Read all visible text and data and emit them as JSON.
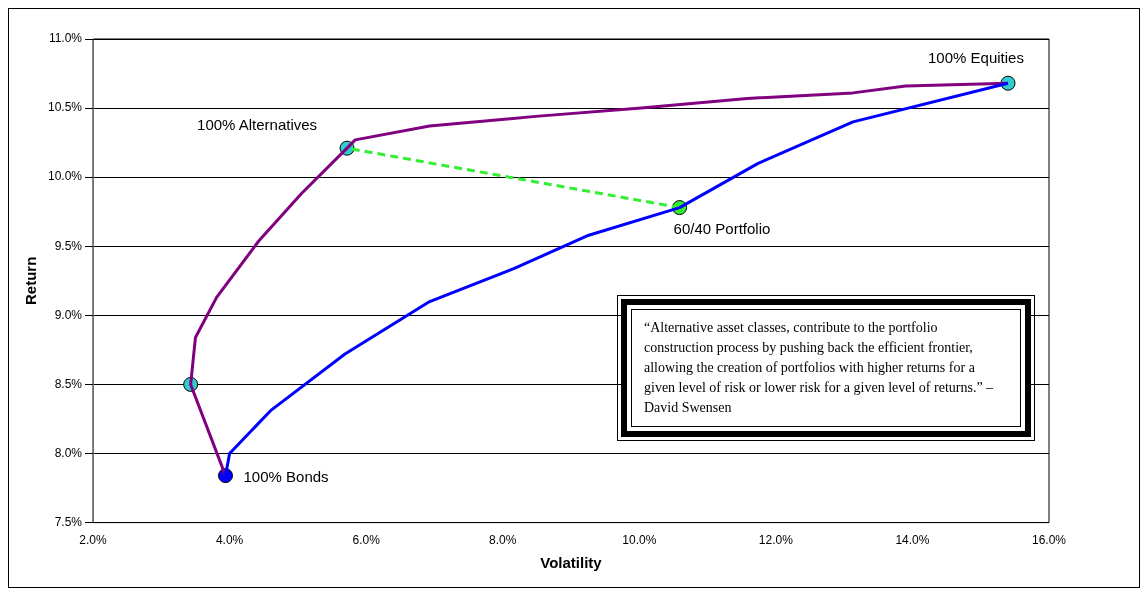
{
  "chart_data": {
    "type": "line",
    "xlabel": "Volatility",
    "ylabel": "Return",
    "xlim": [
      2,
      16
    ],
    "ylim": [
      7.5,
      11
    ],
    "xticks": [
      {
        "value": 2,
        "label": "2.0%"
      },
      {
        "value": 4,
        "label": "4.0%"
      },
      {
        "value": 6,
        "label": "6.0%"
      },
      {
        "value": 8,
        "label": "8.0%"
      },
      {
        "value": 10,
        "label": "10.0%"
      },
      {
        "value": 12,
        "label": "12.0%"
      },
      {
        "value": 14,
        "label": "14.0%"
      },
      {
        "value": 16,
        "label": "16.0%"
      }
    ],
    "yticks": [
      {
        "value": 7.5,
        "label": "7.5%"
      },
      {
        "value": 8,
        "label": "8.0%"
      },
      {
        "value": 8.5,
        "label": "8.5%"
      },
      {
        "value": 9,
        "label": "9.0%"
      },
      {
        "value": 9.5,
        "label": "9.5%"
      },
      {
        "value": 10,
        "label": "10.0%"
      },
      {
        "value": 10.5,
        "label": "10.5%"
      },
      {
        "value": 11,
        "label": "11.0%"
      }
    ],
    "grid": "y",
    "legend": false,
    "marker": "none",
    "series": [
      {
        "color": "#0000ff",
        "x": [
          3.94,
          4.0,
          4.6,
          5.69,
          6.93,
          8.17,
          9.26,
          10.59,
          11.74,
          13.13,
          15.4
        ],
        "values": [
          7.84,
          8.0,
          8.31,
          8.72,
          9.1,
          9.34,
          9.58,
          9.78,
          10.1,
          10.4,
          10.68
        ]
      },
      {
        "color": "#800080",
        "x": [
          3.94,
          3.43,
          3.5,
          3.81,
          4.43,
          5.05,
          5.72,
          5.84,
          6.93,
          8.48,
          10.03,
          11.58,
          13.13,
          13.9,
          15.4
        ],
        "values": [
          7.84,
          8.5,
          8.84,
          9.13,
          9.54,
          9.88,
          10.21,
          10.27,
          10.37,
          10.44,
          10.5,
          10.57,
          10.61,
          10.66,
          10.68
        ]
      },
      {
        "color": "#33ee33",
        "line_style": "dashed",
        "x": [
          10.59,
          5.72
        ],
        "values": [
          9.78,
          10.21
        ]
      },
      {
        "type": "scatter",
        "marker": "circle",
        "colors": [
          "#33cccc",
          "#33cccc",
          "#33cccc",
          "#0000ff",
          "#33ee33"
        ],
        "x": [
          15.4,
          5.72,
          3.43,
          3.94,
          10.59
        ],
        "values": [
          10.68,
          10.21,
          8.5,
          7.84,
          9.78
        ]
      }
    ],
    "annotations": [
      {
        "text": "100% Equities",
        "x": 15.4,
        "y": 10.68
      },
      {
        "text": "100% Alternatives",
        "x": 5.72,
        "y": 10.21
      },
      {
        "text": "100% Bonds",
        "x": 3.94,
        "y": 7.84
      },
      {
        "text": "60/40 Portfolio",
        "x": 10.59,
        "y": 9.78
      },
      "“Alternative asset classes, contribute to the portfolio construction process by pushing back the efficient frontier, allowing the creation of portfolios with higher returns for a given level of risk or lower risk for a given level of returns.” – David Swensen"
    ]
  }
}
